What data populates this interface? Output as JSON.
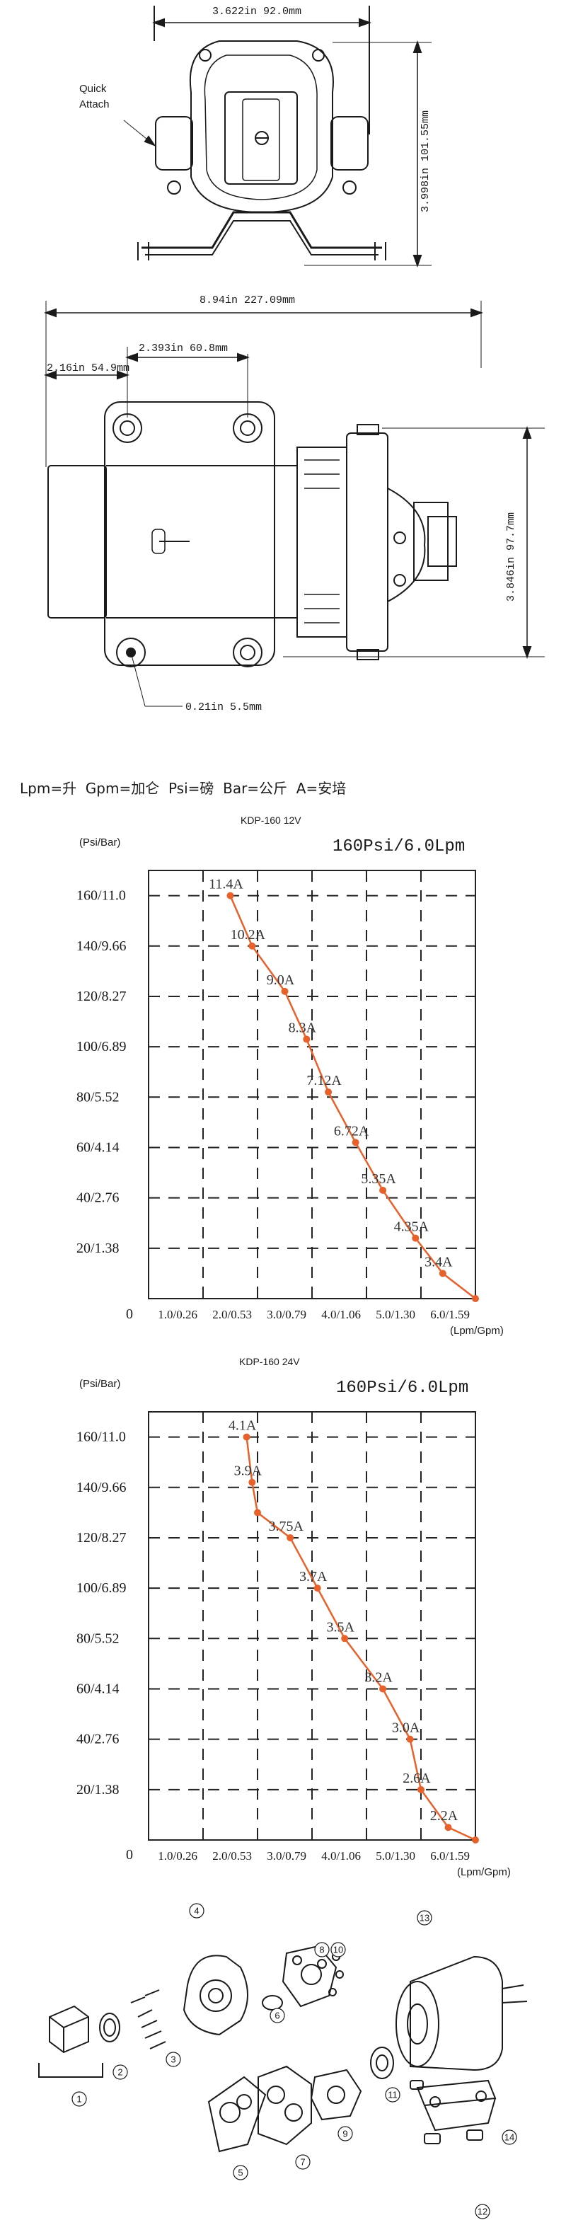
{
  "drawing_top": {
    "width_dim": "3.622in 92.0mm",
    "height_dim": "3.998in 101.55mm",
    "quick_attach_line1": "Quick",
    "quick_attach_line2": "Attach"
  },
  "drawing_side": {
    "length_dim": "8.94in 227.09mm",
    "hole_span_dim": "2.393in 60.8mm",
    "offset_dim": "2.16in 54.9mm",
    "height_dim": "3.846in 97.7mm",
    "hole_dim": "0.21in 5.5mm"
  },
  "legend": "Lpm=升  Gpm=加仑  Psi=磅  Bar=公斤  A=安培",
  "charts": [
    {
      "model_title": "KDP-160 12V",
      "rating": "160Psi/6.0Lpm",
      "y_unit": "(Psi/Bar)",
      "x_unit": "(Lpm/Gpm)",
      "origin": "0",
      "line_color": "#e8602a"
    },
    {
      "model_title": "KDP-160 24V",
      "rating": "160Psi/6.0Lpm",
      "y_unit": "(Psi/Bar)",
      "x_unit": "(Lpm/Gpm)",
      "origin": "0",
      "line_color": "#e8602a"
    }
  ],
  "chart_data": [
    {
      "type": "line",
      "title": "KDP-160 12V",
      "subtitle": "160Psi/6.0Lpm",
      "xlabel": "(Lpm/Gpm)",
      "ylabel": "(Psi/Bar)",
      "x_ticks": [
        "1.0/0.26",
        "2.0/0.53",
        "3.0/0.79",
        "4.0/1.06",
        "5.0/1.30",
        "6.0/1.59"
      ],
      "y_ticks": [
        "160/11.0",
        "140/9.66",
        "120/8.27",
        "100/6.89",
        "80/5.52",
        "60/4.14",
        "40/2.76",
        "20/1.38"
      ],
      "xlim": [
        0,
        6
      ],
      "ylim": [
        0,
        170
      ],
      "grid": true,
      "series": [
        {
          "x": [
            1.5,
            1.9,
            2.5,
            2.9,
            3.3,
            3.8,
            4.3,
            4.9,
            5.4,
            6.0
          ],
          "y": [
            160,
            140,
            122,
            103,
            82,
            62,
            43,
            24,
            10,
            0
          ],
          "labels": [
            "11.4A",
            "10.2A",
            "9.0A",
            "8.3A",
            "7.12A",
            "6.72A",
            "5.35A",
            "4.35A",
            "3.4A",
            ""
          ]
        }
      ]
    },
    {
      "type": "line",
      "title": "KDP-160 24V",
      "subtitle": "160Psi/6.0Lpm",
      "xlabel": "(Lpm/Gpm)",
      "ylabel": "(Psi/Bar)",
      "x_ticks": [
        "1.0/0.26",
        "2.0/0.53",
        "3.0/0.79",
        "4.0/1.06",
        "5.0/1.30",
        "6.0/1.59"
      ],
      "y_ticks": [
        "160/11.0",
        "140/9.66",
        "120/8.27",
        "100/6.89",
        "80/5.52",
        "60/4.14",
        "40/2.76",
        "20/1.38"
      ],
      "xlim": [
        0,
        6
      ],
      "ylim": [
        0,
        170
      ],
      "grid": true,
      "series": [
        {
          "x": [
            1.8,
            1.9,
            2.0,
            2.6,
            3.1,
            3.6,
            4.3,
            4.8,
            5.0,
            5.5,
            6.0
          ],
          "y": [
            160,
            142,
            130,
            120,
            100,
            80,
            60,
            40,
            20,
            5,
            0
          ],
          "labels": [
            "4.1A",
            "3.9A",
            "",
            "3.75A",
            "3.7A",
            "3.5A",
            "3.2A",
            "3.0A",
            "2.6A",
            "2.2A",
            ""
          ]
        }
      ]
    }
  ],
  "exploded_parts": [
    "1",
    "2",
    "3",
    "4",
    "5",
    "6",
    "7",
    "8",
    "9",
    "10",
    "11",
    "12",
    "13",
    "14"
  ]
}
